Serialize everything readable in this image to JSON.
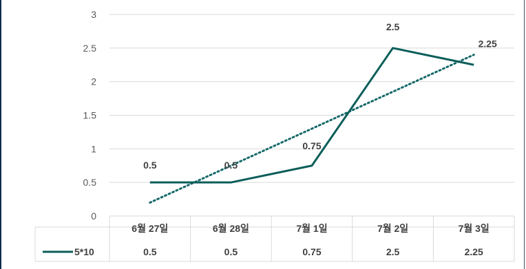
{
  "chart_data": {
    "type": "line",
    "categories": [
      "6월 27일",
      "6월 28일",
      "7월 1일",
      "7월 2일",
      "7월 3일"
    ],
    "series": [
      {
        "name": "5*10",
        "values": [
          0.5,
          0.5,
          0.75,
          2.5,
          2.25
        ],
        "color": "#0b5e5a"
      }
    ],
    "data_labels": [
      "0.5",
      "0.5",
      "0.75",
      "2.5",
      "2.25"
    ],
    "trendline": {
      "type": "linear",
      "style": "dotted",
      "color": "#16686a"
    },
    "y_ticks": [
      "0",
      "0.5",
      "1",
      "1.5",
      "2",
      "2.5",
      "3"
    ],
    "ylim": [
      0,
      3
    ],
    "grid": true,
    "data_table": true,
    "gridline_color": "#d9d9d9"
  }
}
